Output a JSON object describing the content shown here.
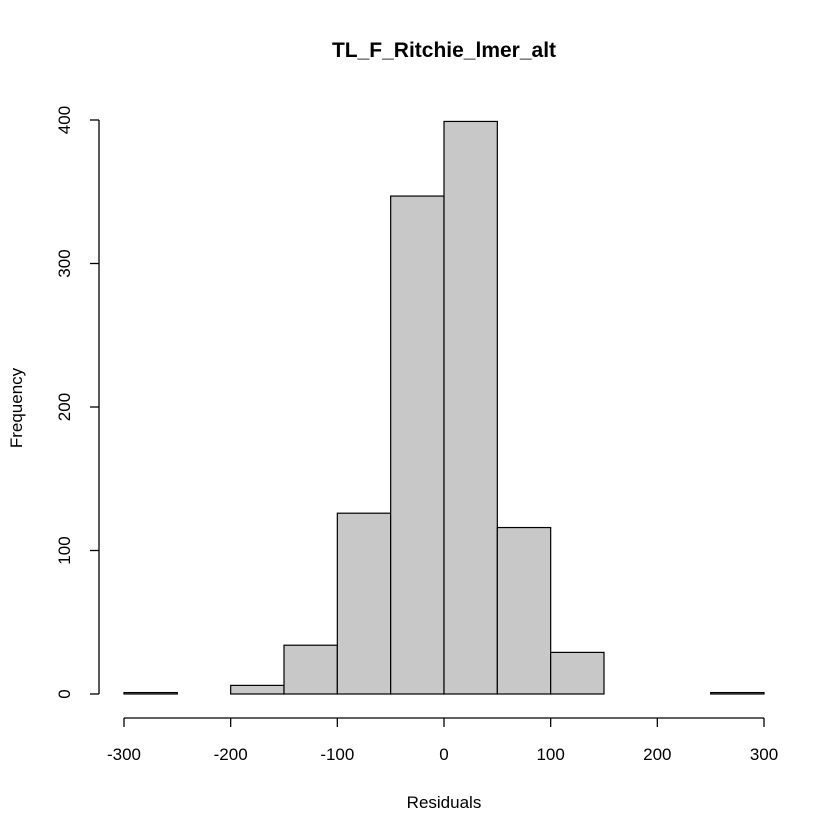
{
  "chart_data": {
    "type": "bar",
    "title": "TL_F_Ritchie_lmer_alt",
    "xlabel": "Residuals",
    "ylabel": "Frequency",
    "bar_fill": "#c8c8c8",
    "bin_edges": [
      -300,
      -250,
      -200,
      -150,
      -100,
      -50,
      0,
      50,
      100,
      150,
      200,
      250,
      300
    ],
    "counts": [
      1,
      0,
      6,
      34,
      126,
      347,
      399,
      116,
      29,
      0,
      0,
      1
    ],
    "xlim": [
      -300,
      300
    ],
    "ylim": [
      0,
      400
    ],
    "x_ticks": [
      -300,
      -200,
      -100,
      0,
      100,
      200,
      300
    ],
    "y_ticks": [
      0,
      100,
      200,
      300,
      400
    ],
    "x_tick_labels": [
      "-300",
      "-200",
      "-100",
      "0",
      "100",
      "200",
      "300"
    ],
    "y_tick_labels": [
      "0",
      "100",
      "200",
      "300",
      "400"
    ],
    "grid": false
  }
}
